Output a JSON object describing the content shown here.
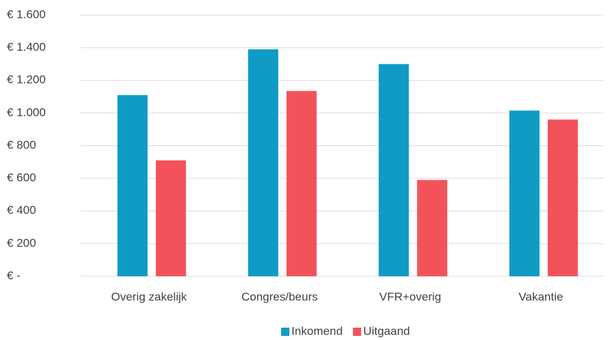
{
  "chart_data": {
    "type": "bar",
    "categories": [
      "Overig zakelijk",
      "Congres/beurs",
      "VFR+overig",
      "Vakantie"
    ],
    "series": [
      {
        "name": "Inkomend",
        "color": "#0f9bc5",
        "values": [
          1110,
          1390,
          1300,
          1015
        ]
      },
      {
        "name": "Uitgaand",
        "color": "#f2535a",
        "values": [
          710,
          1135,
          590,
          960
        ]
      }
    ],
    "ylim": [
      0,
      1600
    ],
    "yticks": [
      {
        "value": 0,
        "label": "€ -"
      },
      {
        "value": 200,
        "label": "€ 200"
      },
      {
        "value": 400,
        "label": "€ 400"
      },
      {
        "value": 600,
        "label": "€ 600"
      },
      {
        "value": 800,
        "label": "€ 800"
      },
      {
        "value": 1000,
        "label": "€ 1.000"
      },
      {
        "value": 1200,
        "label": "€ 1.200"
      },
      {
        "value": 1400,
        "label": "€ 1.400"
      },
      {
        "value": 1600,
        "label": "€ 1.600"
      }
    ],
    "grid": true,
    "legend": "bottom"
  }
}
